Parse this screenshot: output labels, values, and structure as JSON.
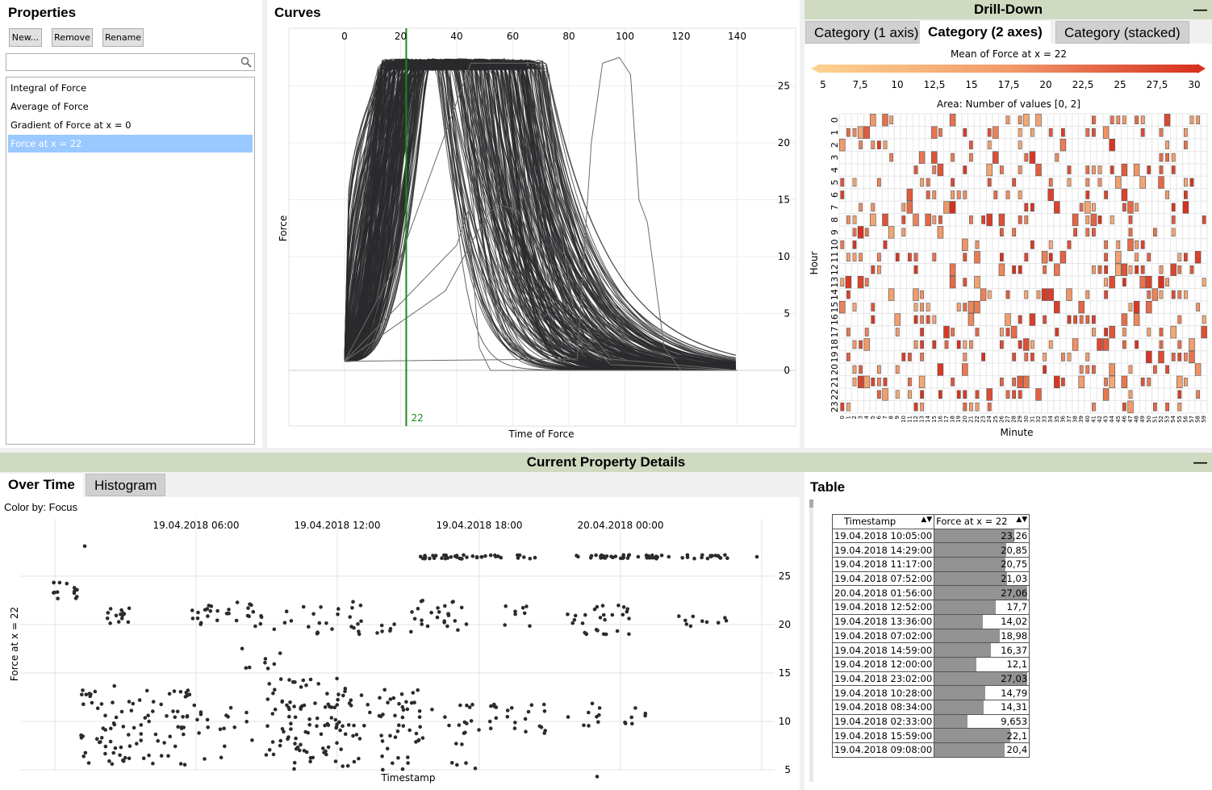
{
  "properties": {
    "title": "Properties",
    "buttons": {
      "new": "New...",
      "remove": "Remove",
      "rename": "Rename"
    },
    "search_placeholder": "",
    "items": [
      "Integral of Force",
      "Average of Force",
      "Gradient of Force at x = 0",
      "Force at x = 22"
    ],
    "selected_index": 3
  },
  "curves": {
    "title": "Curves",
    "xlabel": "Time of Force",
    "ylabel": "Force",
    "x_ticks": [
      "0",
      "20",
      "40",
      "60",
      "80",
      "100",
      "120",
      "140"
    ],
    "y_ticks": [
      "0",
      "5",
      "10",
      "15",
      "20",
      "25"
    ],
    "marker_label": "22",
    "marker_color": "#1a8a1a",
    "curve_color": "#2b2b2e"
  },
  "drilldown": {
    "title": "Drill-Down",
    "minimize": "—",
    "tabs": [
      "Category (1 axis)",
      "Category (2 axes)",
      "Category (stacked)"
    ],
    "active_tab": 1,
    "legend_title": "Mean of Force at x = 22",
    "legend_ticks": [
      "5",
      "7,5",
      "10",
      "12,5",
      "15",
      "17,5",
      "20",
      "22,5",
      "25",
      "27,5",
      "30"
    ],
    "area_label": "Area:  Number of values  [0, 2]",
    "ylabel": "Hour",
    "xlabel": "Minute",
    "hours": [
      "0",
      "1",
      "2",
      "3",
      "4",
      "5",
      "6",
      "7",
      "8",
      "9",
      "10",
      "11",
      "12",
      "13",
      "14",
      "15",
      "16",
      "17",
      "18",
      "19",
      "20",
      "21",
      "22",
      "23"
    ],
    "colors": {
      "low": "#f9c787",
      "high": "#d7301f"
    }
  },
  "details": {
    "title": "Current Property Details",
    "minimize": "—",
    "tabs": [
      "Over Time",
      "Histogram"
    ],
    "active_tab": 0,
    "color_by": "Color by: Focus",
    "scatter": {
      "xlabel": "Timestamp",
      "ylabel": "Force at x = 22",
      "x_ticks": [
        "19.04.2018 06:00",
        "19.04.2018 12:00",
        "19.04.2018 18:00",
        "20.04.2018 00:00"
      ],
      "y_ticks": [
        "5",
        "10",
        "15",
        "20",
        "25"
      ]
    }
  },
  "table": {
    "title": "Table",
    "col1": "Timestamp",
    "col2": "Force at x = 22",
    "rows": [
      [
        "19.04.2018 10:05:00",
        "23,26",
        23.26
      ],
      [
        "19.04.2018 14:29:00",
        "20,85",
        20.85
      ],
      [
        "19.04.2018 11:17:00",
        "20,75",
        20.75
      ],
      [
        "19.04.2018 07:52:00",
        "21,03",
        21.03
      ],
      [
        "20.04.2018 01:56:00",
        "27,06",
        27.06
      ],
      [
        "19.04.2018 12:52:00",
        "17,7",
        17.7
      ],
      [
        "19.04.2018 13:36:00",
        "14,02",
        14.02
      ],
      [
        "19.04.2018 07:02:00",
        "18,98",
        18.98
      ],
      [
        "19.04.2018 14:59:00",
        "16,37",
        16.37
      ],
      [
        "19.04.2018 12:00:00",
        "12,1",
        12.1
      ],
      [
        "19.04.2018 23:02:00",
        "27,03",
        27.03
      ],
      [
        "19.04.2018 10:28:00",
        "14,79",
        14.79
      ],
      [
        "19.04.2018 08:34:00",
        "14,31",
        14.31
      ],
      [
        "19.04.2018 02:33:00",
        "9,653",
        9.653
      ],
      [
        "19.04.2018 15:59:00",
        "22,1",
        22.1
      ],
      [
        "19.04.2018 09:08:00",
        "20,4",
        20.4
      ]
    ]
  }
}
